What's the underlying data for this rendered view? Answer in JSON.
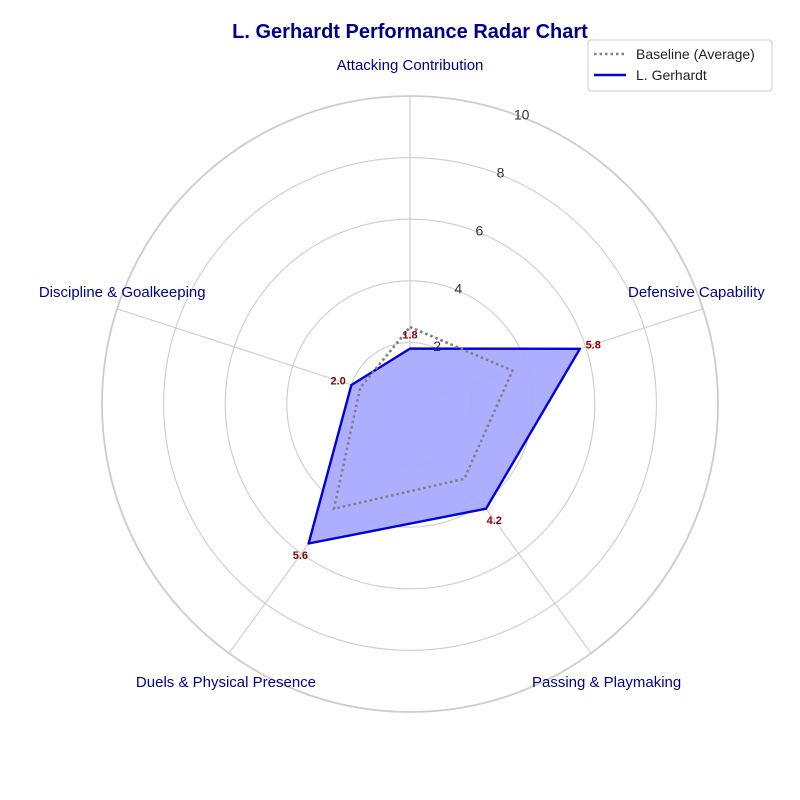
{
  "chart_data": {
    "type": "radar",
    "title": "L. Gerhardt Performance Radar Chart",
    "categories": [
      "Attacking Contribution",
      "Defensive Capability",
      "Passing & Playmaking",
      "Duels & Physical Presence",
      "Discipline & Goalkeeping"
    ],
    "rlim": [
      0,
      10
    ],
    "r_ticks": [
      "2",
      "4",
      "6",
      "8",
      "10"
    ],
    "grid": true,
    "legend_position": "top-right",
    "series": [
      {
        "name": "Baseline (Average)",
        "values": [
          2.5,
          3.5,
          3.0,
          4.2,
          1.7
        ],
        "color": "#808080",
        "style": "dotted"
      },
      {
        "name": "L. Gerhardt",
        "values": [
          1.8,
          5.8,
          4.2,
          5.6,
          2.0
        ],
        "value_labels": [
          "1.8",
          "5.8",
          "4.2",
          "5.6",
          "2.0"
        ],
        "color": "#0000dd",
        "fill": "#aaaaff",
        "style": "solid"
      }
    ]
  }
}
